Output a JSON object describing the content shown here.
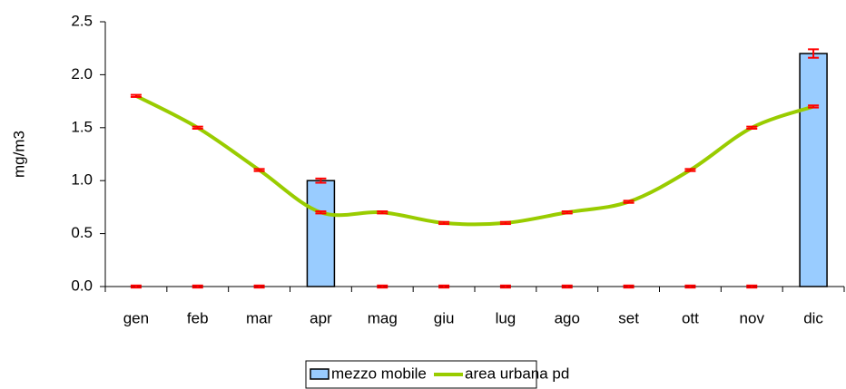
{
  "chart_data": {
    "type": "bar",
    "y_label": "mg/m3",
    "categories": [
      "gen",
      "feb",
      "mar",
      "apr",
      "mag",
      "giu",
      "lug",
      "ago",
      "set",
      "ott",
      "nov",
      "dic"
    ],
    "series": [
      {
        "name": "mezzo mobile",
        "type": "bar",
        "color": "#99ccff",
        "values": [
          0,
          0,
          0,
          1.0,
          0,
          0,
          0,
          0,
          0,
          0,
          0,
          2.2
        ],
        "errors": [
          0.01,
          0.01,
          0.01,
          0.02,
          0.01,
          0.01,
          0.01,
          0.01,
          0.01,
          0.01,
          0.01,
          0.04
        ]
      },
      {
        "name": "area urbana pd",
        "type": "line",
        "color": "#99cc00",
        "values": [
          1.8,
          1.5,
          1.1,
          0.7,
          0.7,
          0.6,
          0.6,
          0.7,
          0.8,
          1.1,
          1.5,
          1.7
        ],
        "errors": [
          0.01,
          0.01,
          0.01,
          0.01,
          0.01,
          0.01,
          0.01,
          0.01,
          0.01,
          0.01,
          0.01,
          0.01
        ]
      }
    ],
    "error_color": "#ff0000",
    "ylim": [
      0,
      2.5
    ],
    "yticks": [
      {
        "value": 0,
        "label": "0.0"
      },
      0.5,
      {
        "value": 1,
        "label": "1.0"
      },
      1.5,
      {
        "value": 2,
        "label": "2.0"
      },
      2.5
    ],
    "legend": "bottom"
  }
}
